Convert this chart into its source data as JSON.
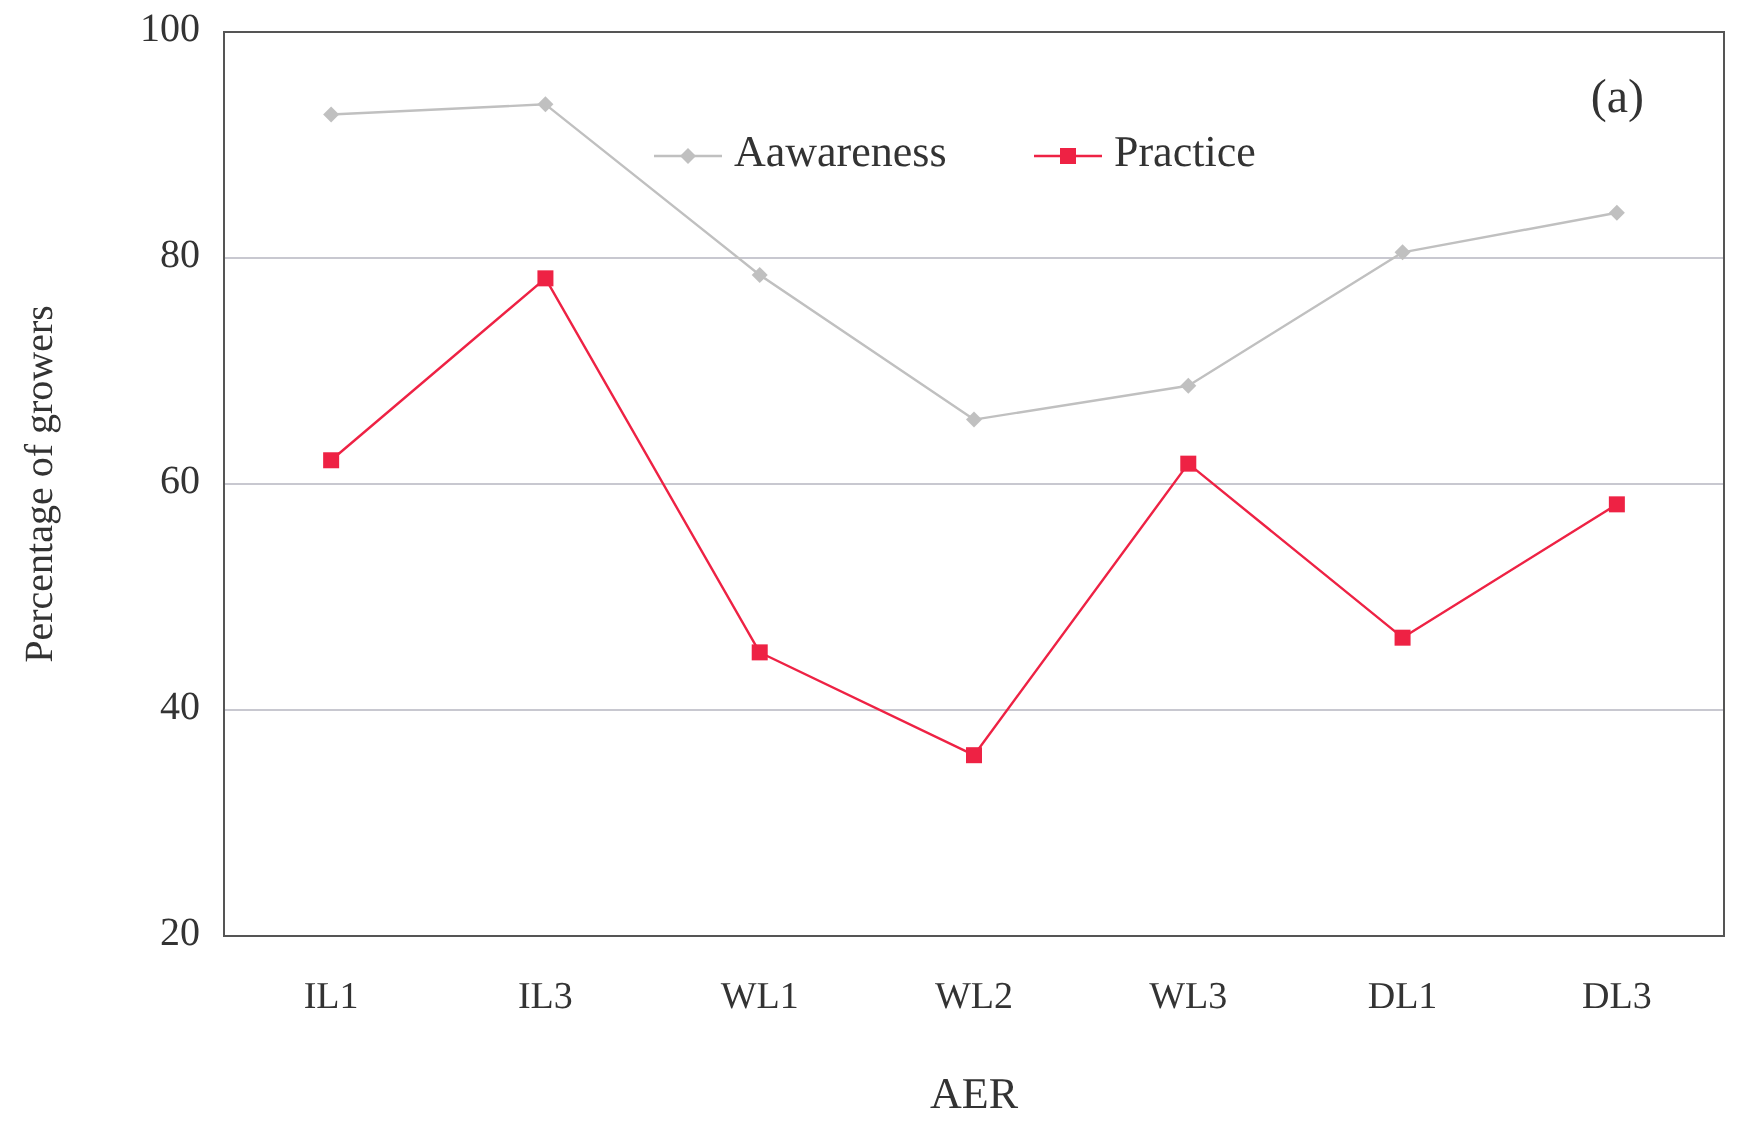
{
  "chart_data": {
    "type": "line",
    "xlabel": "AER",
    "ylabel": "Percentage of growers",
    "categories": [
      "IL1",
      "IL3",
      "WL1",
      "WL2",
      "WL3",
      "DL1",
      "DL3"
    ],
    "series": [
      {
        "name": "Aawareness",
        "color": "#c0c0c0",
        "marker": "diamond",
        "values": [
          92.7,
          93.6,
          78.5,
          65.7,
          68.7,
          80.5,
          84
        ]
      },
      {
        "name": "Practice",
        "color": "#ee2244",
        "marker": "square",
        "values": [
          62.1,
          78.2,
          45.1,
          36,
          61.8,
          46.4,
          58.2
        ]
      }
    ],
    "ylim": [
      20,
      100
    ],
    "yticks": [
      20,
      40,
      60,
      80,
      100
    ],
    "grid": "y",
    "legend": "top",
    "annotations": [
      "(a)"
    ]
  }
}
